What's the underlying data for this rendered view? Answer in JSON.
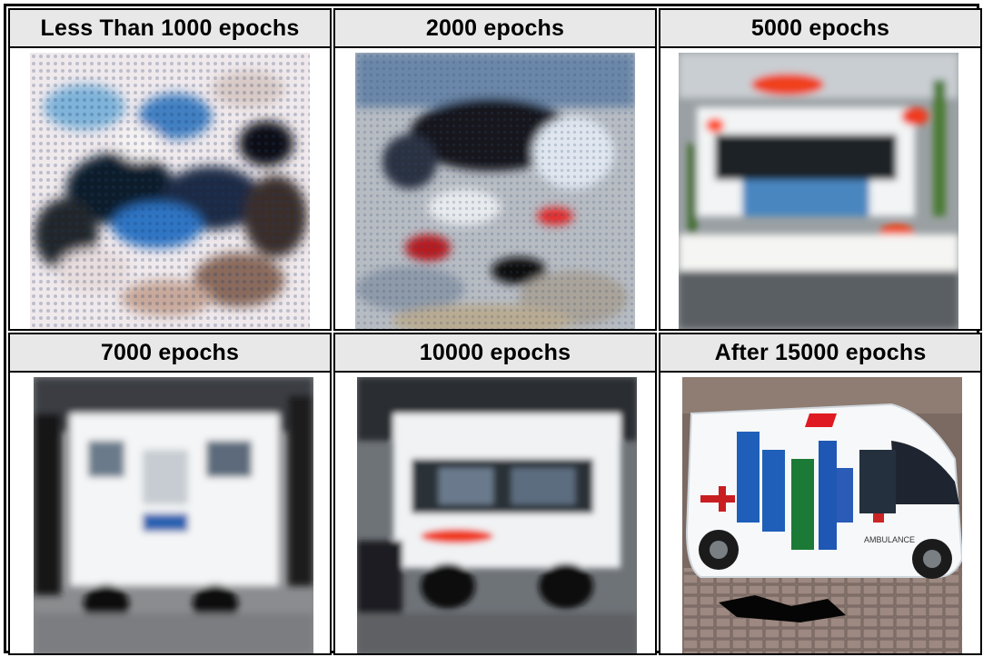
{
  "figure": {
    "panels": [
      {
        "title": "Less Than 1000 epochs",
        "image": "generated-ambulance-noise-blobs"
      },
      {
        "title": "2000 epochs",
        "image": "generated-ambulance-blurry-shapes"
      },
      {
        "title": "5000 epochs",
        "image": "generated-ambulance-vehicle-forming"
      },
      {
        "title": "7000 epochs",
        "image": "generated-ambulance-white-vehicle"
      },
      {
        "title": "10000 epochs",
        "image": "generated-ambulance-clearer-van"
      },
      {
        "title": "After 15000 epochs",
        "image": "generated-ambulance-white-van"
      }
    ],
    "van_text": "AMBULANCE"
  }
}
